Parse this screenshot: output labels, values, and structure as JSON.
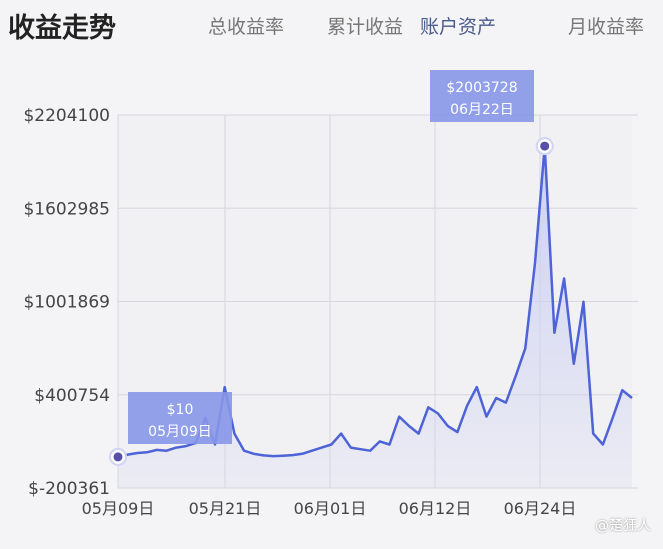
{
  "header": {
    "title": "收益走势",
    "tabs": [
      {
        "label": "总收益率"
      },
      {
        "label": "累计收益"
      },
      {
        "label": "账户资产",
        "active": true
      },
      {
        "label": "月收益率"
      }
    ]
  },
  "chart_data": {
    "type": "area",
    "title": "",
    "xlabel": "",
    "ylabel": "",
    "yticks": [
      "$2204100",
      "$1602985",
      "$1001869",
      "$400754",
      "$-200361"
    ],
    "ylim": [
      -200361,
      2204100
    ],
    "xticks": [
      "05月09日",
      "05月21日",
      "06月01日",
      "06月12日",
      "06月24日"
    ],
    "x_start": "05月09日",
    "x": [
      "05-09",
      "05-10",
      "05-11",
      "05-12",
      "05-13",
      "05-14",
      "05-15",
      "05-16",
      "05-17",
      "05-18",
      "05-19",
      "05-20",
      "05-21",
      "05-22",
      "05-23",
      "05-24",
      "05-25",
      "05-26",
      "05-27",
      "05-28",
      "05-29",
      "05-30",
      "05-31",
      "06-01",
      "06-02",
      "06-03",
      "06-04",
      "06-05",
      "06-06",
      "06-07",
      "06-08",
      "06-09",
      "06-10",
      "06-11",
      "06-12",
      "06-13",
      "06-14",
      "06-15",
      "06-16",
      "06-17",
      "06-18",
      "06-19",
      "06-20",
      "06-21",
      "06-22",
      "06-23",
      "06-24",
      "06-25",
      "06-26",
      "06-27",
      "06-28",
      "06-29",
      "06-30",
      "07-01"
    ],
    "values": [
      10,
      15000,
      25000,
      30000,
      45000,
      40000,
      60000,
      70000,
      90000,
      250000,
      80000,
      450000,
      150000,
      40000,
      20000,
      10000,
      5000,
      8000,
      12000,
      20000,
      40000,
      60000,
      80000,
      150000,
      60000,
      50000,
      40000,
      100000,
      80000,
      260000,
      200000,
      150000,
      320000,
      280000,
      200000,
      160000,
      330000,
      450000,
      260000,
      380000,
      350000,
      520000,
      700000,
      1250000,
      2003728,
      800000,
      1150000,
      600000,
      1000000,
      150000,
      80000,
      250000,
      430000,
      380000
    ],
    "grid": true,
    "tooltips": [
      {
        "value": "$2003728",
        "date": "06月22日"
      },
      {
        "value": "$10",
        "date": "05月09日"
      }
    ],
    "colors": {
      "line": "#4d63d6",
      "fill": "#c9cdf3",
      "tooltip": "#8796e8"
    }
  },
  "watermark": "@楚狂人"
}
